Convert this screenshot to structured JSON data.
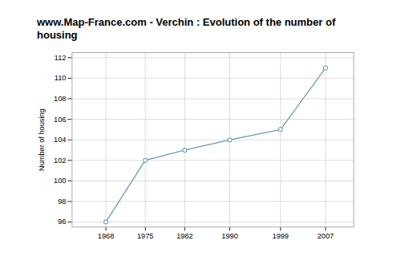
{
  "chart_data": {
    "type": "line",
    "title": "www.Map-France.com - Verchin : Evolution of the number of housing",
    "ylabel": "Number of housing",
    "x": [
      1968,
      1975,
      1982,
      1990,
      1999,
      2007
    ],
    "values": [
      96,
      102,
      103,
      104,
      105,
      111
    ],
    "xlim": [
      1962,
      2012
    ],
    "ylim": [
      95.5,
      112.5
    ],
    "xticks": [
      1968,
      1975,
      1982,
      1990,
      1999,
      2007
    ],
    "yticks": [
      96,
      98,
      100,
      102,
      104,
      106,
      108,
      110,
      112
    ],
    "grid": true,
    "color": "#6699bb",
    "marker": "circle"
  }
}
